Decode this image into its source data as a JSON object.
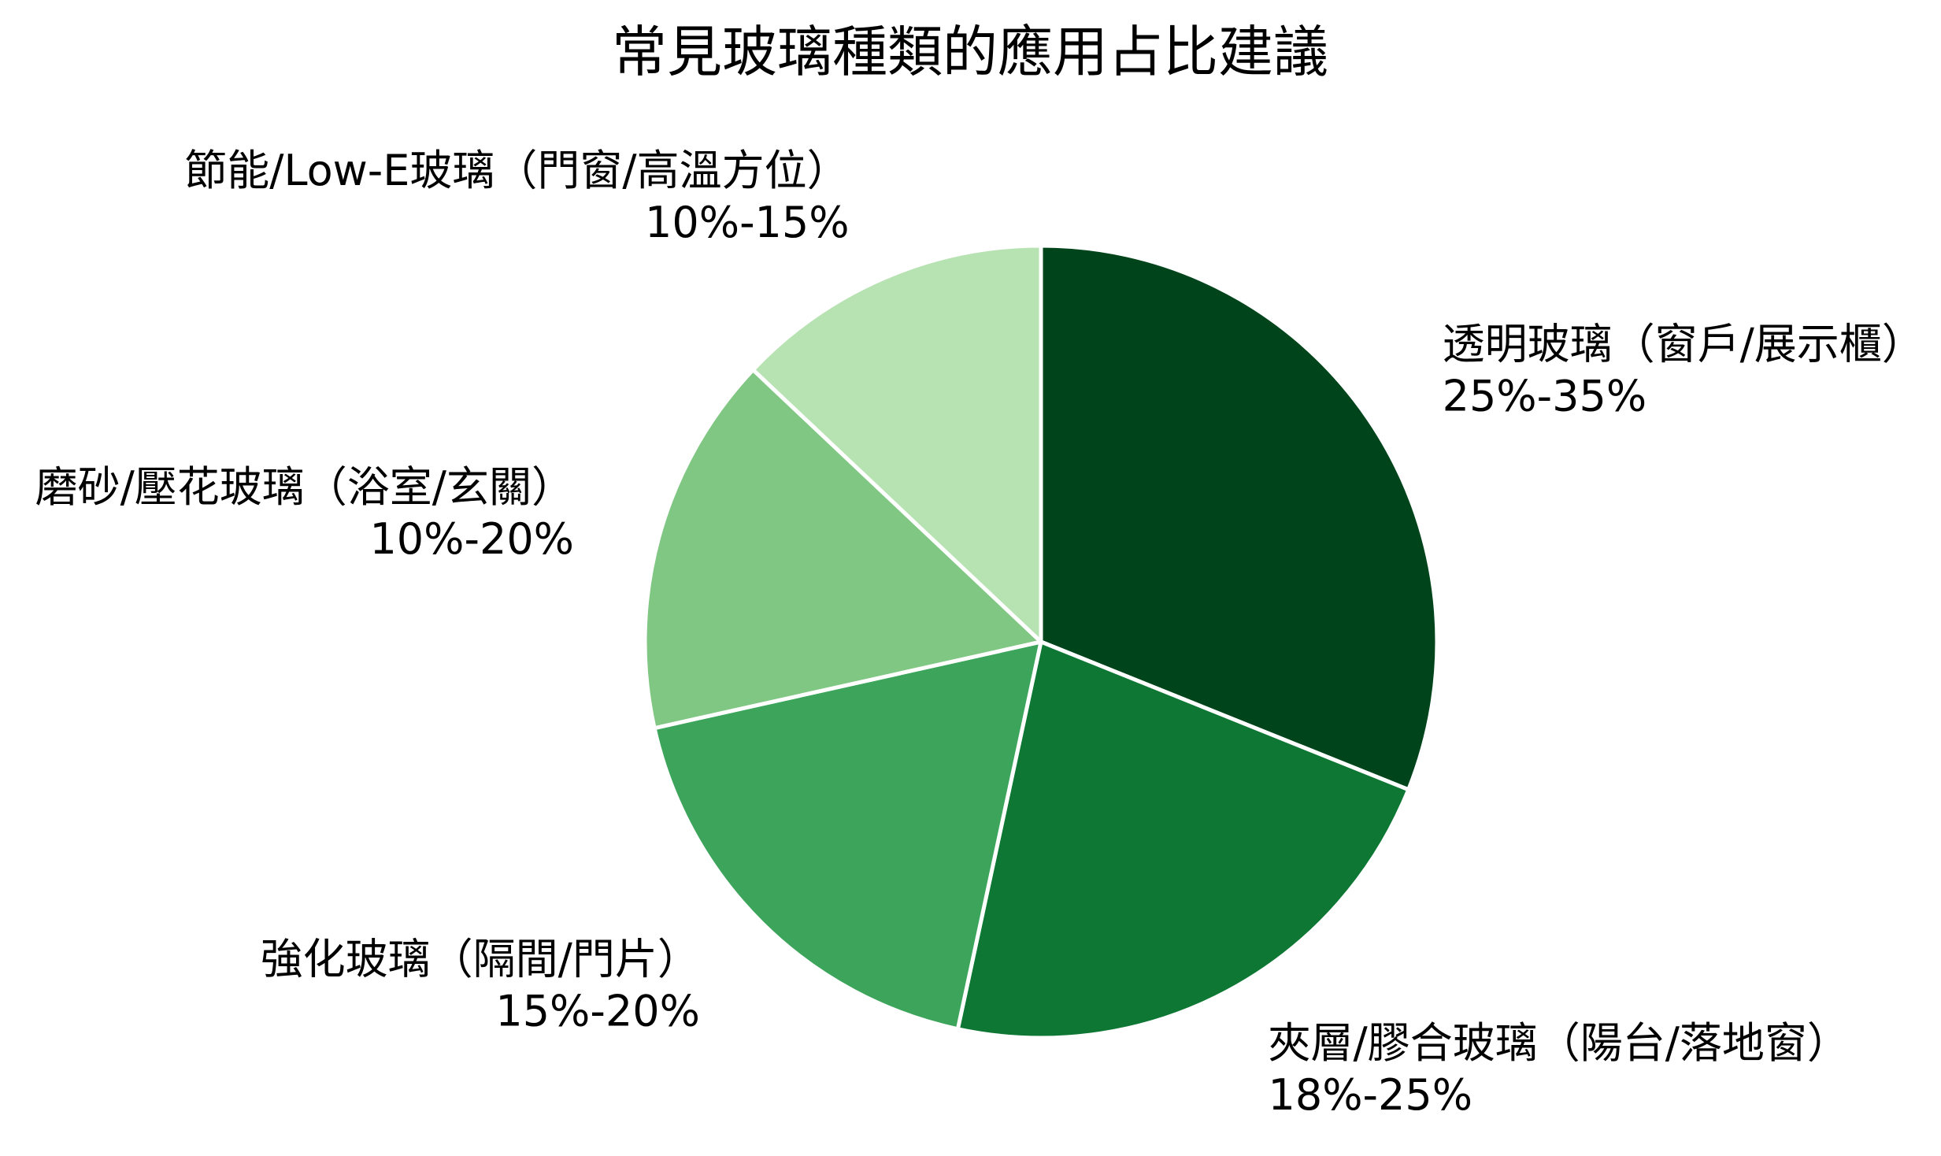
{
  "chart_data": {
    "type": "pie",
    "title": "常見玻璃種類的應用占比建議",
    "slices": [
      {
        "name": "透明玻璃（窗戶/展示櫃）",
        "range": "25%-35%",
        "value": 30,
        "color": "#00441b"
      },
      {
        "name": "夾層/膠合玻璃（陽台/落地窗）",
        "range": "18%-25%",
        "value": 21.5,
        "color": "#0e7734"
      },
      {
        "name": "強化玻璃（隔間/門片）",
        "range": "15%-20%",
        "value": 17.5,
        "color": "#3da55b"
      },
      {
        "name": "磨砂/壓花玻璃（浴室/玄關）",
        "range": "10%-20%",
        "value": 15,
        "color": "#80c783"
      },
      {
        "name": "節能/Low-E玻璃（門窗/高溫方位）",
        "range": "10%-15%",
        "value": 12.5,
        "color": "#b7e2b2"
      }
    ],
    "legend": "none",
    "edge_color": "#ffffff"
  }
}
